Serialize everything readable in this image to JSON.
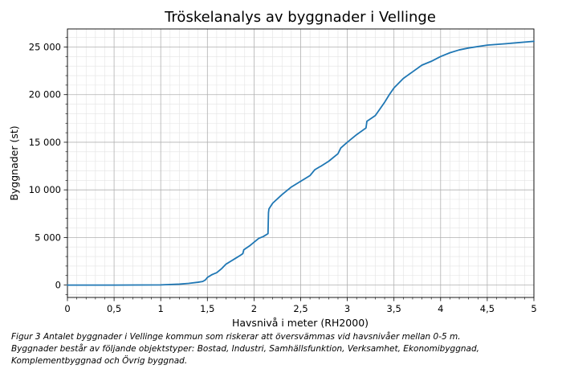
{
  "chart_data": {
    "type": "line",
    "title": "Tröskelanalys av byggnader i Vellinge",
    "xlabel": "Havsnivå i meter (RH2000)",
    "ylabel": "Byggnader (st)",
    "xlim": [
      0,
      5
    ],
    "ylim": [
      -1300,
      26900
    ],
    "xticks": [
      0,
      0.5,
      1,
      1.5,
      2,
      2.5,
      3,
      3.5,
      4,
      4.5,
      5
    ],
    "xtick_labels": [
      "0",
      "0,5",
      "1",
      "1,5",
      "2",
      "2,5",
      "3",
      "3,5",
      "4",
      "4,5",
      "5"
    ],
    "yticks": [
      0,
      5000,
      10000,
      15000,
      20000,
      25000
    ],
    "ytick_labels": [
      "0",
      "5 000",
      "10 000",
      "15 000",
      "20 000",
      "25 000"
    ],
    "grid": "major and minor",
    "color": "#1f77b4",
    "series": [
      {
        "x": [
          0,
          0.5,
          1.0,
          1.1,
          1.2,
          1.3,
          1.4,
          1.45,
          1.48,
          1.5,
          1.55,
          1.6,
          1.65,
          1.7,
          1.75,
          1.8,
          1.85,
          1.88,
          1.89,
          1.95,
          2.0,
          2.05,
          2.1,
          2.15,
          2.155,
          2.16,
          2.2,
          2.3,
          2.4,
          2.5,
          2.6,
          2.65,
          2.7,
          2.72,
          2.8,
          2.9,
          2.92,
          2.93,
          3.0,
          3.1,
          3.2,
          3.21,
          3.3,
          3.35,
          3.4,
          3.45,
          3.5,
          3.55,
          3.6,
          3.7,
          3.8,
          3.9,
          4.0,
          4.1,
          4.2,
          4.3,
          4.5,
          4.7,
          5.0
        ],
        "y": [
          0,
          0,
          20,
          60,
          100,
          180,
          300,
          380,
          550,
          800,
          1100,
          1300,
          1700,
          2200,
          2500,
          2800,
          3100,
          3300,
          3700,
          4100,
          4500,
          4900,
          5100,
          5400,
          7600,
          8000,
          8600,
          9500,
          10300,
          10900,
          11500,
          12100,
          12400,
          12500,
          13000,
          13800,
          14200,
          14400,
          15000,
          15800,
          16500,
          17200,
          17800,
          18500,
          19200,
          20000,
          20700,
          21200,
          21700,
          22400,
          23100,
          23500,
          24000,
          24400,
          24700,
          24900,
          25200,
          25350,
          25600
        ]
      }
    ]
  },
  "caption": {
    "lines": [
      "Figur 3 Antalet byggnader i Vellinge kommun som riskerar att översvämmas vid havsnivåer mellan 0-5 m.",
      "Byggnader består av följande objektstyper: Bostad, Industri, Samhällsfunktion, Verksamhet, Ekonomibyggnad,",
      "Komplementbyggnad och Övrig byggnad."
    ]
  }
}
